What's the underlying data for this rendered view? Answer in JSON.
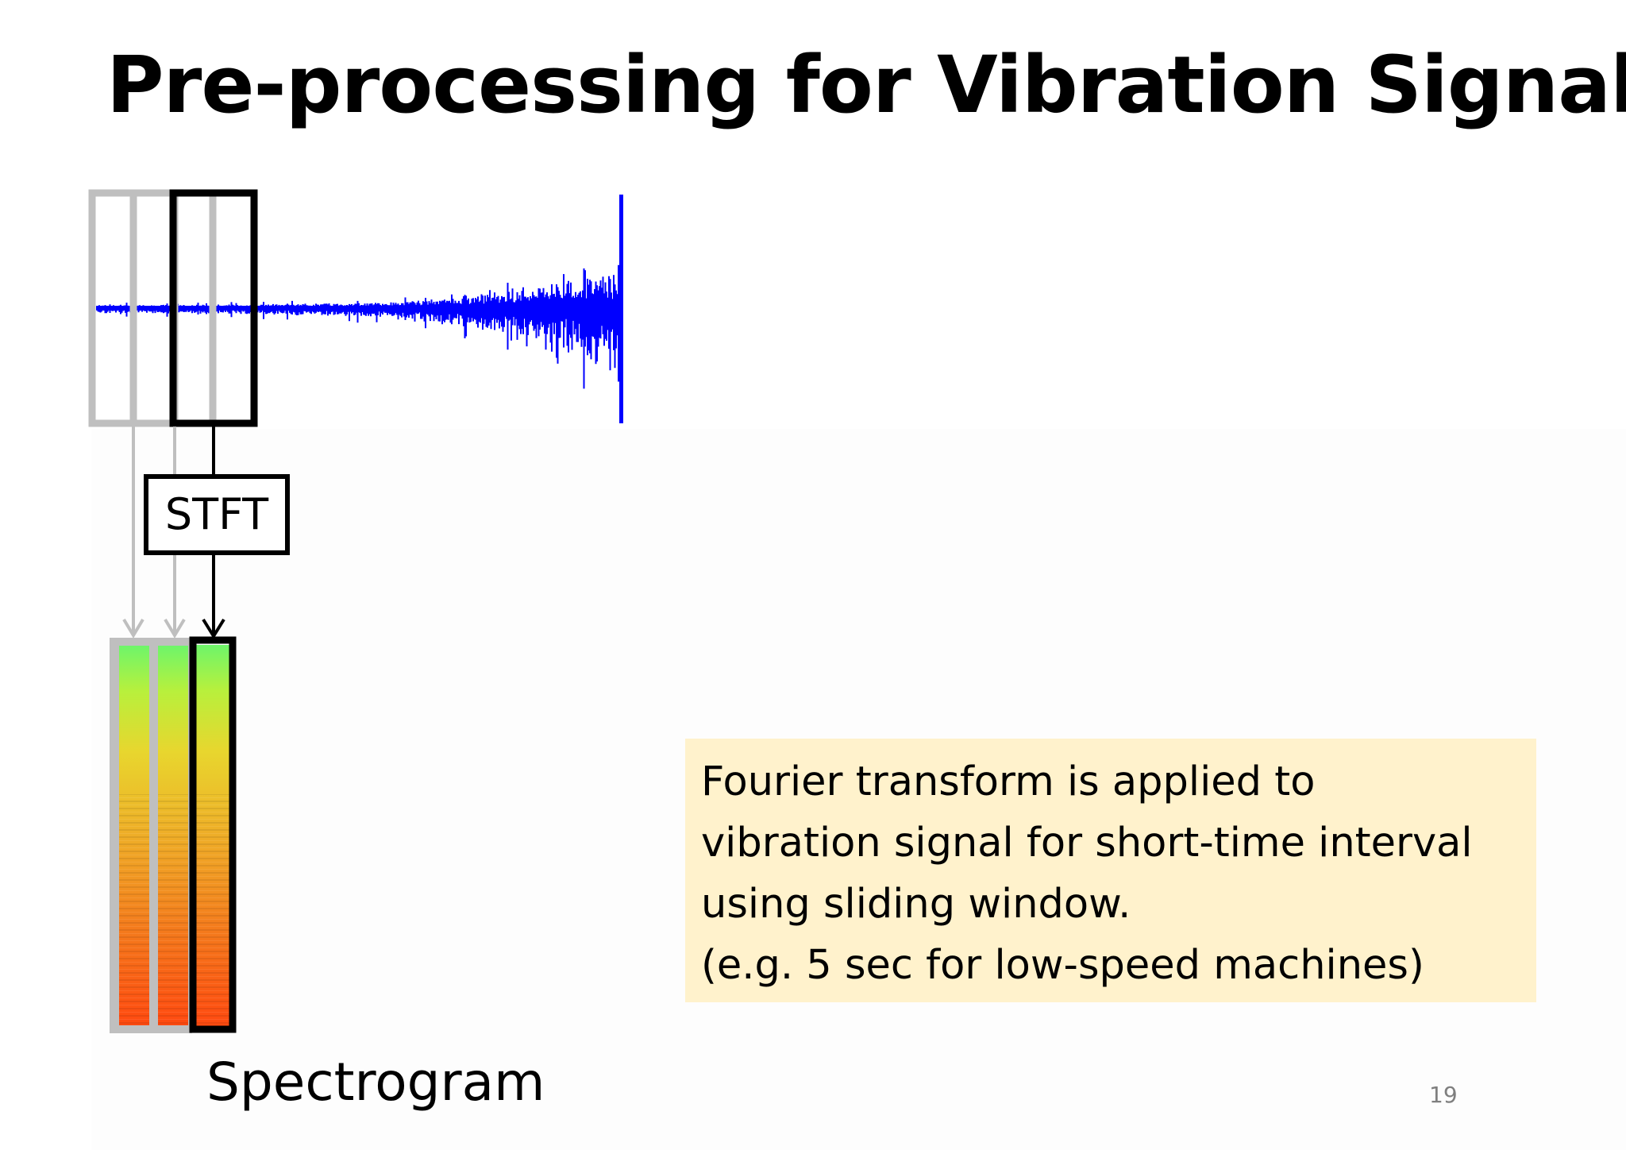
{
  "slide": {
    "title": "Pre-processing for Vibration Signals",
    "page_number": "19"
  },
  "diagram": {
    "transform_label": "STFT",
    "output_label": "Spectrogram",
    "colors": {
      "signal": "#0000ff",
      "active_window": "#000000",
      "previous_window": "#bfbfbf",
      "note_background": "#fff2cc",
      "spectrogram_low_freq": "#6ef56a",
      "spectrogram_mid_freq": "#e8c028",
      "spectrogram_high_freq": "#ff4a10"
    }
  },
  "note": {
    "lines": [
      "Fourier transform is applied to",
      "vibration signal for short-time interval",
      "using sliding window.",
      "(e.g. 5 sec for low-speed machines)"
    ]
  }
}
